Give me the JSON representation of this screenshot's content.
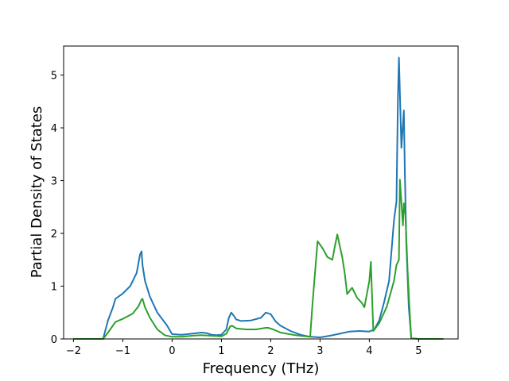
{
  "chart_data": {
    "type": "line",
    "title": "",
    "xlabel": "Frequency (THz)",
    "ylabel": "Partial Density of States",
    "xlim": [
      -2.2,
      5.8
    ],
    "ylim": [
      0,
      5.55
    ],
    "xticks": [
      -2,
      -1,
      0,
      1,
      2,
      3,
      4,
      5
    ],
    "yticks": [
      0,
      1,
      2,
      3,
      4,
      5
    ],
    "grid": false,
    "series": [
      {
        "color": "#1f77b4",
        "x": [
          -2.0,
          -1.4,
          -1.3,
          -1.2,
          -1.15,
          -1.0,
          -0.85,
          -0.72,
          -0.65,
          -0.62,
          -0.6,
          -0.55,
          -0.45,
          -0.3,
          -0.1,
          0.0,
          0.2,
          0.4,
          0.6,
          0.7,
          0.8,
          0.9,
          1.0,
          1.1,
          1.15,
          1.2,
          1.25,
          1.3,
          1.4,
          1.6,
          1.8,
          1.9,
          2.0,
          2.1,
          2.2,
          2.4,
          2.6,
          2.8,
          3.0,
          3.2,
          3.4,
          3.6,
          3.8,
          4.0,
          4.1,
          4.2,
          4.3,
          4.4,
          4.5,
          4.55,
          4.58,
          4.6,
          4.65,
          4.7,
          4.72,
          4.75,
          4.8,
          4.85,
          5.0,
          5.5
        ],
        "y": [
          0,
          0,
          0.35,
          0.6,
          0.76,
          0.86,
          1.0,
          1.25,
          1.6,
          1.66,
          1.4,
          1.1,
          0.8,
          0.5,
          0.25,
          0.09,
          0.08,
          0.1,
          0.12,
          0.11,
          0.08,
          0.07,
          0.08,
          0.18,
          0.4,
          0.5,
          0.44,
          0.37,
          0.34,
          0.35,
          0.4,
          0.5,
          0.47,
          0.33,
          0.25,
          0.15,
          0.08,
          0.04,
          0.03,
          0.06,
          0.1,
          0.14,
          0.15,
          0.14,
          0.18,
          0.35,
          0.7,
          1.1,
          2.25,
          2.6,
          4.6,
          5.33,
          3.62,
          4.33,
          3.2,
          1.8,
          0.6,
          0.01,
          0,
          0
        ]
      },
      {
        "color": "#2ca02c",
        "x": [
          -2.0,
          -1.4,
          -1.3,
          -1.15,
          -1.0,
          -0.8,
          -0.68,
          -0.62,
          -0.6,
          -0.55,
          -0.45,
          -0.3,
          -0.15,
          0.0,
          0.2,
          0.4,
          0.6,
          0.8,
          1.0,
          1.1,
          1.18,
          1.22,
          1.3,
          1.5,
          1.7,
          1.9,
          1.95,
          2.05,
          2.2,
          2.5,
          2.8,
          2.85,
          2.95,
          3.05,
          3.15,
          3.25,
          3.3,
          3.35,
          3.45,
          3.5,
          3.55,
          3.65,
          3.75,
          3.85,
          3.9,
          4.0,
          4.03,
          4.08,
          4.2,
          4.35,
          4.5,
          4.55,
          4.6,
          4.62,
          4.68,
          4.7,
          4.73,
          4.78,
          4.82,
          4.85,
          5.0,
          5.5
        ],
        "y": [
          0,
          0,
          0.12,
          0.32,
          0.38,
          0.48,
          0.62,
          0.75,
          0.76,
          0.6,
          0.4,
          0.18,
          0.07,
          0.04,
          0.04,
          0.06,
          0.07,
          0.06,
          0.05,
          0.1,
          0.24,
          0.25,
          0.2,
          0.18,
          0.18,
          0.21,
          0.21,
          0.18,
          0.12,
          0.07,
          0.04,
          0.7,
          1.85,
          1.72,
          1.55,
          1.5,
          1.75,
          1.98,
          1.55,
          1.25,
          0.85,
          0.97,
          0.78,
          0.68,
          0.6,
          1.1,
          1.46,
          0.15,
          0.3,
          0.6,
          1.1,
          1.4,
          1.5,
          3.02,
          2.15,
          2.57,
          2.35,
          1.2,
          0.5,
          0.01,
          0,
          0
        ]
      }
    ]
  }
}
